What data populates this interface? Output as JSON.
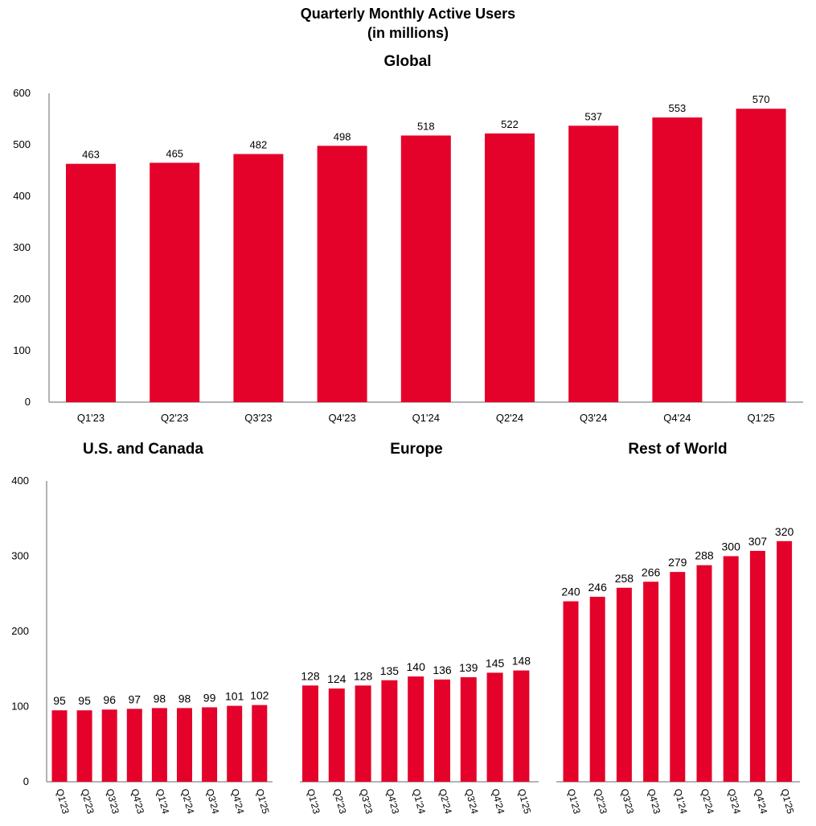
{
  "header": {
    "title_line1": "Quarterly Monthly Active Users",
    "title_line2": "(in millions)"
  },
  "colors": {
    "bar": "#e4022a",
    "axis": "#9a9a9a"
  },
  "chart_data": [
    {
      "type": "bar",
      "title": "Global",
      "categories": [
        "Q1'23",
        "Q2'23",
        "Q3'23",
        "Q4'23",
        "Q1'24",
        "Q2'24",
        "Q3'24",
        "Q4'24",
        "Q1'25"
      ],
      "values": [
        463,
        465,
        482,
        498,
        518,
        522,
        537,
        553,
        570
      ],
      "ylim": [
        0,
        600
      ],
      "yticks": [
        0,
        100,
        200,
        300,
        400,
        500,
        600
      ],
      "data_labels": true,
      "grid": false
    },
    {
      "type": "bar",
      "title": "U.S. and Canada",
      "categories": [
        "Q1'23",
        "Q2'23",
        "Q3'23",
        "Q4'23",
        "Q1'24",
        "Q2'24",
        "Q3'24",
        "Q4'24",
        "Q1'25"
      ],
      "values": [
        95,
        95,
        96,
        97,
        98,
        98,
        99,
        101,
        102
      ],
      "ylim": [
        0,
        400
      ],
      "yticks": [
        0,
        100,
        200,
        300,
        400
      ],
      "data_labels": true,
      "grid": false
    },
    {
      "type": "bar",
      "title": "Europe",
      "categories": [
        "Q1'23",
        "Q2'23",
        "Q3'23",
        "Q4'23",
        "Q1'24",
        "Q2'24",
        "Q3'24",
        "Q4'24",
        "Q1'25"
      ],
      "values": [
        128,
        124,
        128,
        135,
        140,
        136,
        139,
        145,
        148
      ],
      "ylim": [
        0,
        400
      ],
      "data_labels": true,
      "grid": false
    },
    {
      "type": "bar",
      "title": "Rest of World",
      "categories": [
        "Q1'23",
        "Q2'23",
        "Q3'23",
        "Q4'23",
        "Q1'24",
        "Q2'24",
        "Q3'24",
        "Q4'24",
        "Q1'25"
      ],
      "values": [
        240,
        246,
        258,
        266,
        279,
        288,
        300,
        307,
        320
      ],
      "ylim": [
        0,
        400
      ],
      "data_labels": true,
      "grid": false
    }
  ]
}
